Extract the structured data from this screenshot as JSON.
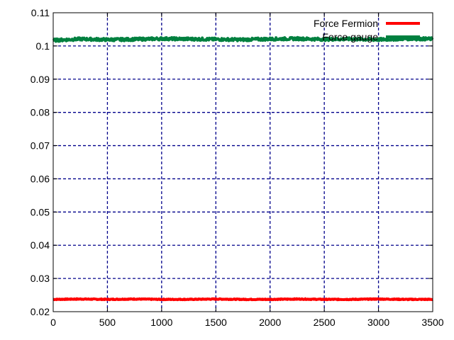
{
  "chart_data": {
    "type": "line",
    "title": "",
    "xlabel": "",
    "ylabel": "",
    "xlim": [
      0,
      3500
    ],
    "ylim": [
      0.02,
      0.11
    ],
    "x_ticks": [
      0,
      500,
      1000,
      1500,
      2000,
      2500,
      3000,
      3500
    ],
    "x_tick_labels": [
      "0",
      "500",
      "1000",
      "1500",
      "2000",
      "2500",
      "3000",
      "3500"
    ],
    "y_ticks": [
      0.02,
      0.03,
      0.04,
      0.05,
      0.06,
      0.07,
      0.08,
      0.09,
      0.1,
      0.11
    ],
    "y_tick_labels": [
      "0.02",
      "0.03",
      "0.04",
      "0.05",
      "0.06",
      "0.07",
      "0.08",
      "0.09",
      "0.1",
      "0.11"
    ],
    "grid": true,
    "legend_position": "top-right",
    "series": [
      {
        "name": "Force Fermion",
        "color": "#ff0000",
        "x": [
          0,
          250,
          500,
          750,
          1000,
          1250,
          1500,
          1750,
          2000,
          2250,
          2500,
          2750,
          3000,
          3250,
          3500
        ],
        "values": [
          0.0237,
          0.0238,
          0.0237,
          0.0238,
          0.0237,
          0.0237,
          0.0238,
          0.0237,
          0.0237,
          0.0238,
          0.0237,
          0.0237,
          0.0238,
          0.0237,
          0.0237
        ]
      },
      {
        "name": "Force gauge",
        "color": "#00803f",
        "x": [
          0,
          250,
          500,
          750,
          1000,
          1250,
          1500,
          1750,
          2000,
          2250,
          2500,
          2750,
          3000,
          3250,
          3500
        ],
        "values": [
          0.1017,
          0.1021,
          0.1019,
          0.102,
          0.1022,
          0.1021,
          0.102,
          0.1019,
          0.1021,
          0.1022,
          0.102,
          0.1021,
          0.1019,
          0.1022,
          0.1021
        ]
      }
    ]
  }
}
